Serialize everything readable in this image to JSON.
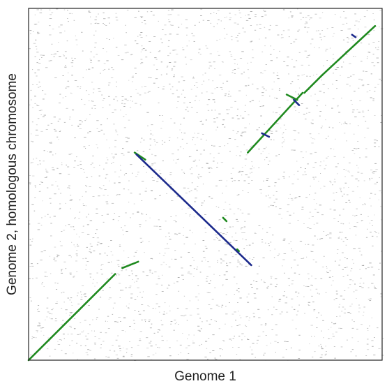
{
  "chart_data": {
    "type": "scatter",
    "title": "",
    "xlabel": "Genome 1",
    "ylabel": "Genome 2, homologous chromosome",
    "xlim": [
      0,
      1
    ],
    "ylim": [
      0,
      1
    ],
    "grid": false,
    "legend": "none",
    "colors": {
      "forward": "#1f8a1f",
      "reverse": "#1c2a8c",
      "noise": "#8c8c8c",
      "frame": "#222222"
    },
    "series": [
      {
        "orientation": "forward",
        "segments": [
          [
            [
              0.0,
              0.0
            ],
            [
              0.245,
              0.245
            ]
          ],
          [
            [
              0.265,
              0.262
            ],
            [
              0.31,
              0.28
            ]
          ],
          [
            [
              0.62,
              0.59
            ],
            [
              0.775,
              0.76
            ]
          ],
          [
            [
              0.78,
              0.76
            ],
            [
              0.83,
              0.81
            ]
          ],
          [
            [
              0.83,
              0.81
            ],
            [
              0.98,
              0.95
            ]
          ],
          [
            [
              0.55,
              0.405
            ],
            [
              0.56,
              0.395
            ]
          ],
          [
            [
              0.59,
              0.315
            ],
            [
              0.595,
              0.31
            ]
          ],
          [
            [
              0.3,
              0.59
            ],
            [
              0.33,
              0.57
            ]
          ],
          [
            [
              0.73,
              0.755
            ],
            [
              0.76,
              0.74
            ]
          ]
        ]
      },
      {
        "orientation": "reverse",
        "segments": [
          [
            [
              0.305,
              0.585
            ],
            [
              0.63,
              0.27
            ]
          ],
          [
            [
              0.66,
              0.645
            ],
            [
              0.68,
              0.635
            ]
          ],
          [
            [
              0.75,
              0.74
            ],
            [
              0.765,
              0.725
            ]
          ],
          [
            [
              0.915,
              0.925
            ],
            [
              0.925,
              0.918
            ]
          ]
        ]
      }
    ]
  }
}
